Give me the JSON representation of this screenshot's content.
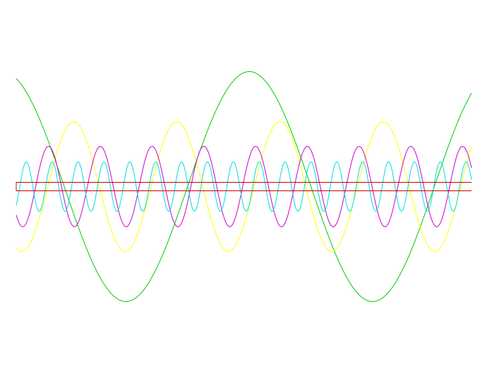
{
  "chart_data": {
    "type": "line",
    "title": "",
    "xlabel": "",
    "ylabel": "",
    "grid": false,
    "legend": "none",
    "axes_visible": false,
    "x_range": [
      0,
      644
    ],
    "y_range": [
      -170,
      170
    ],
    "samples": 645,
    "series": [
      {
        "color": "#00cc00",
        "kind": "sine",
        "amplitude": 163,
        "period": 349,
        "phase_deg": 110
      },
      {
        "color": "#ffff00",
        "kind": "sine",
        "amplitude": 92,
        "period": 146,
        "phase_deg": 250
      },
      {
        "color": "#cc00cc",
        "kind": "sine",
        "amplitude": 57,
        "period": 73.2,
        "phase_deg": 225
      },
      {
        "color": "#00dddd",
        "kind": "sine",
        "amplitude": 35,
        "period": 36.6,
        "phase_deg": 310
      },
      {
        "color": "#cc0000",
        "kind": "bracket",
        "amplitude": 6
      }
    ]
  }
}
